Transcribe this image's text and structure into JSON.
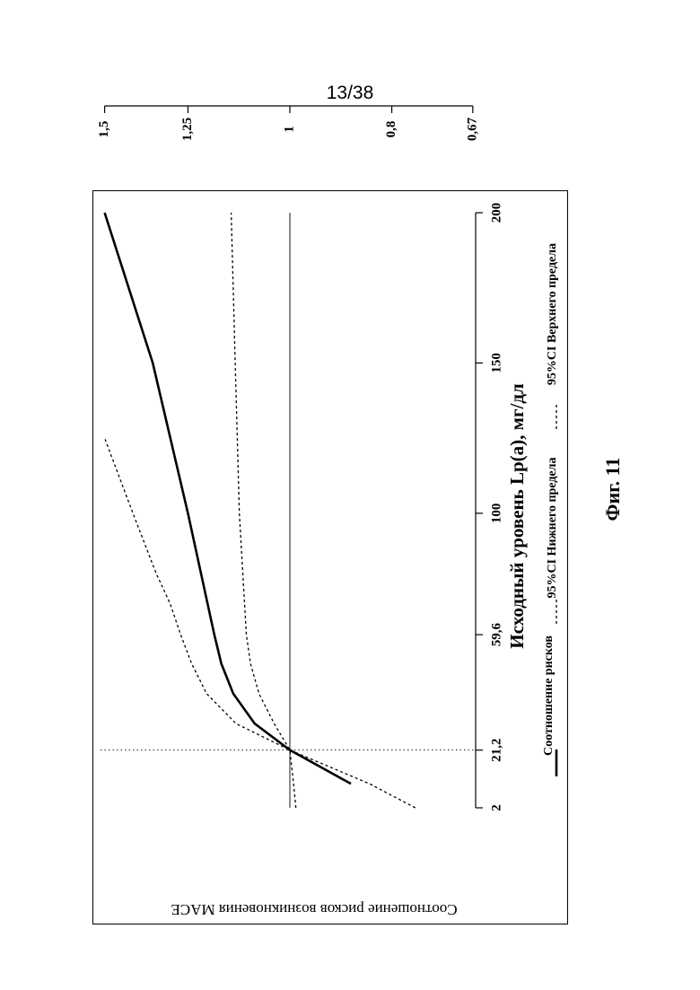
{
  "page_number": "13/38",
  "figure_caption": "Фиг. 11",
  "chart_data": {
    "type": "line",
    "title": "",
    "xlabel": "Исходный уровень Lp(a), мг/дл",
    "ylabel": "Соотношение рисков возникновения MACE",
    "x_scale": "linear",
    "y_scale": "log",
    "xlim": [
      2,
      200
    ],
    "ylim": [
      0.67,
      1.5
    ],
    "x_ticks": [
      2,
      21.2,
      59.6,
      100,
      150,
      200
    ],
    "x_tick_labels": [
      "2",
      "21,2",
      "59,6",
      "100",
      "150",
      "200"
    ],
    "y_ticks": [
      0.67,
      0.8,
      1,
      1.25,
      1.5
    ],
    "y_tick_labels": [
      "0,67",
      "0,8",
      "1",
      "1,25",
      "1,5"
    ],
    "reference_lines": {
      "horizontal_y": 1,
      "vertical_x": 21.2
    },
    "series": [
      {
        "name": "Соотношение рисков",
        "style": "solid-thick",
        "x": [
          10,
          21.2,
          30,
          40,
          50,
          59.6,
          100,
          150,
          200
        ],
        "y": [
          0.875,
          1.0,
          1.08,
          1.132,
          1.162,
          1.18,
          1.25,
          1.35,
          1.5
        ]
      },
      {
        "name": "95%CI Нижнего предела",
        "style": "dotted",
        "x": [
          2,
          10,
          21.2,
          30,
          40,
          50,
          59.6,
          100,
          150,
          200
        ],
        "y": [
          0.987,
          0.992,
          1.0,
          1.035,
          1.07,
          1.09,
          1.1,
          1.117,
          1.127,
          1.137
        ]
      },
      {
        "name": "95%CI Верхнего предела",
        "style": "dotted",
        "x": [
          2,
          10,
          21.2,
          30,
          40,
          50,
          59.6,
          70,
          80,
          100,
          125
        ],
        "y": [
          0.76,
          0.84,
          1.0,
          1.125,
          1.2,
          1.24,
          1.27,
          1.3,
          1.34,
          1.41,
          1.5
        ]
      }
    ],
    "legend": {
      "placement": "bottom",
      "entries": [
        "Соотношение рисков",
        "95%CI Нижнего предела",
        "95%CI Верхнего предела"
      ]
    },
    "grid": false
  }
}
